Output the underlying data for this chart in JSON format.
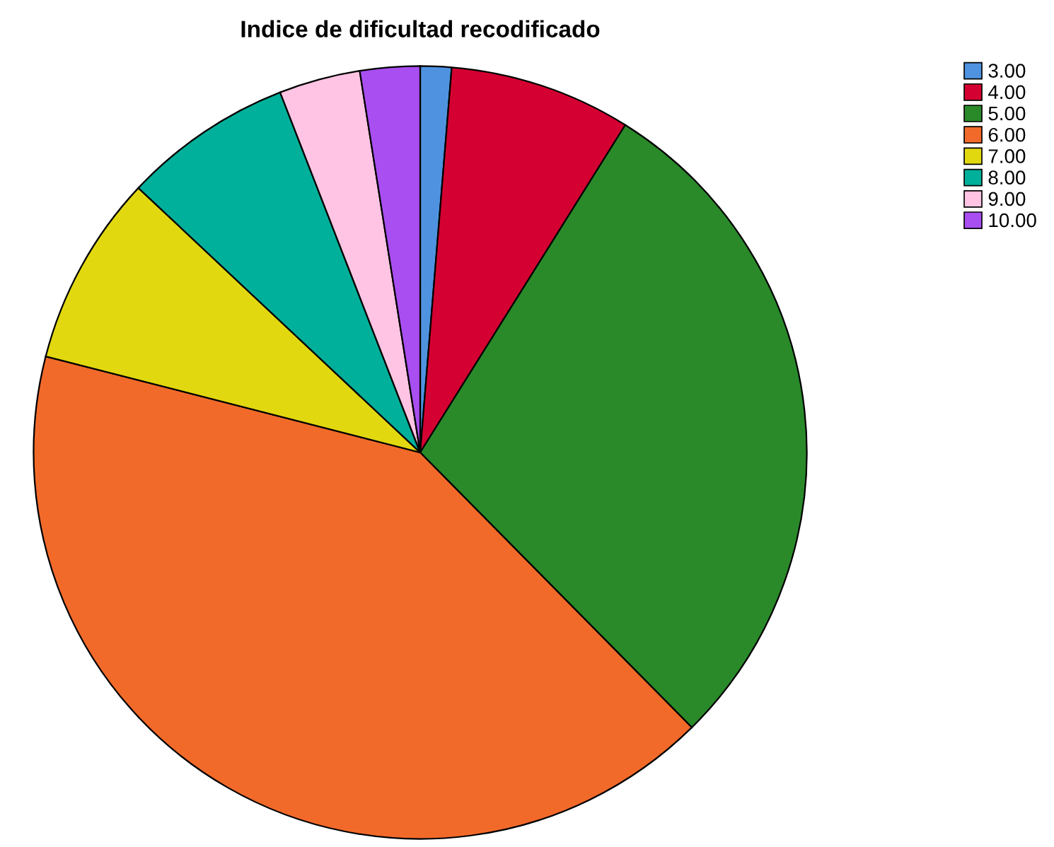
{
  "chart_data": {
    "type": "pie",
    "title": "Indice de dificultad recodificado",
    "categories": [
      "3.00",
      "4.00",
      "5.00",
      "6.00",
      "7.00",
      "8.00",
      "9.00",
      "10.00"
    ],
    "values": [
      1.3,
      7.6,
      28.7,
      41.4,
      8.0,
      7.1,
      3.4,
      2.5
    ],
    "colors": [
      "#4f93e0",
      "#d50032",
      "#2a8a2a",
      "#f26a2a",
      "#e2d810",
      "#00b09b",
      "#ffc4e3",
      "#a94ef0"
    ],
    "legend": "top right"
  }
}
